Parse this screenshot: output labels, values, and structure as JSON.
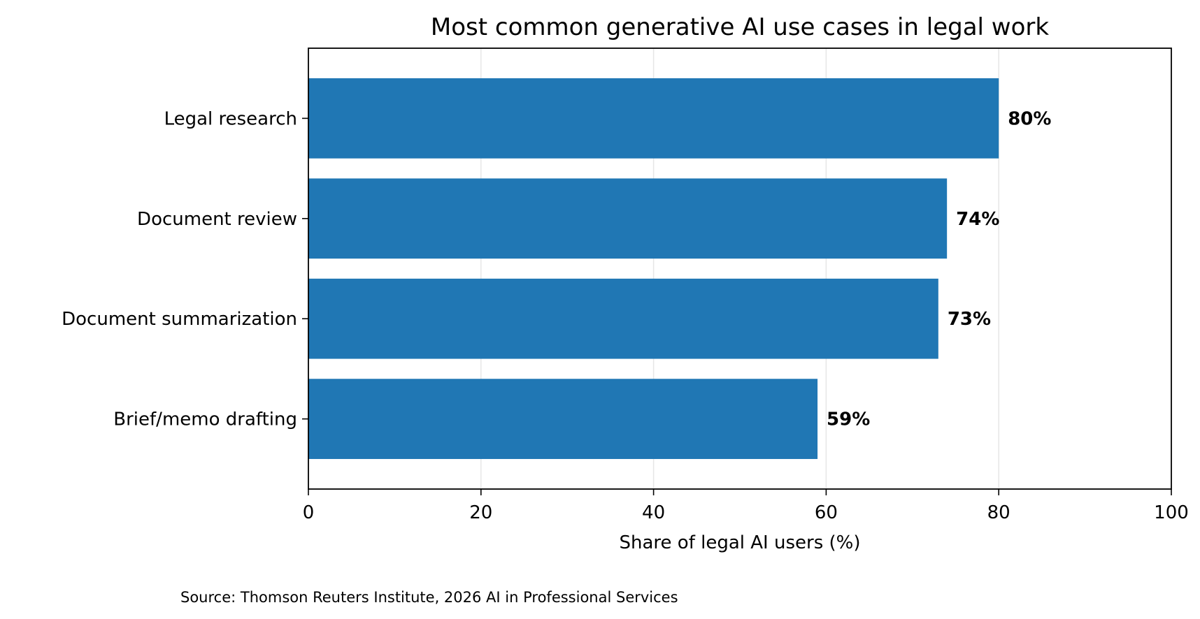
{
  "chart_data": {
    "type": "bar",
    "orientation": "horizontal",
    "title": "Most common generative AI use cases in legal work",
    "xlabel": "Share of legal AI users (%)",
    "ylabel": "",
    "xlim": [
      0,
      100
    ],
    "xticks": [
      0,
      20,
      40,
      60,
      80,
      100
    ],
    "categories": [
      "Legal research",
      "Document review",
      "Document summarization",
      "Brief/memo drafting"
    ],
    "values": [
      80,
      74,
      73,
      59
    ],
    "value_labels": [
      "80%",
      "74%",
      "73%",
      "59%"
    ],
    "bar_color": "#2077b4",
    "grid": "x",
    "source": "Source: Thomson Reuters Institute, 2026 AI in Professional Services"
  }
}
